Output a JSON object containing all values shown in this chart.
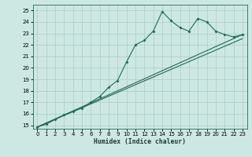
{
  "xlabel": "Humidex (Indice chaleur)",
  "bg_color": "#cde8e2",
  "grid_color": "#aaccC6",
  "line_color": "#1e6b58",
  "xlim": [
    -0.5,
    23.5
  ],
  "ylim": [
    14.7,
    25.5
  ],
  "xticks": [
    0,
    1,
    2,
    3,
    4,
    5,
    6,
    7,
    8,
    9,
    10,
    11,
    12,
    13,
    14,
    15,
    16,
    17,
    18,
    19,
    20,
    21,
    22,
    23
  ],
  "yticks": [
    15,
    16,
    17,
    18,
    19,
    20,
    21,
    22,
    23,
    24,
    25
  ],
  "line1_x": [
    0,
    1,
    2,
    3,
    4,
    5,
    6,
    7,
    8,
    9,
    10,
    11,
    12,
    13,
    14,
    15,
    16,
    17,
    18,
    19,
    20,
    21,
    22,
    23
  ],
  "line1_y": [
    14.85,
    15.1,
    15.5,
    15.9,
    16.2,
    16.5,
    17.0,
    17.5,
    18.3,
    18.9,
    20.5,
    22.0,
    22.4,
    23.2,
    24.9,
    24.1,
    23.5,
    23.2,
    24.3,
    24.0,
    23.2,
    22.9,
    22.7,
    22.9
  ],
  "line2_x": [
    0,
    23
  ],
  "line2_y": [
    14.85,
    22.9
  ],
  "line3_x": [
    0,
    23
  ],
  "line3_y": [
    14.85,
    22.55
  ]
}
